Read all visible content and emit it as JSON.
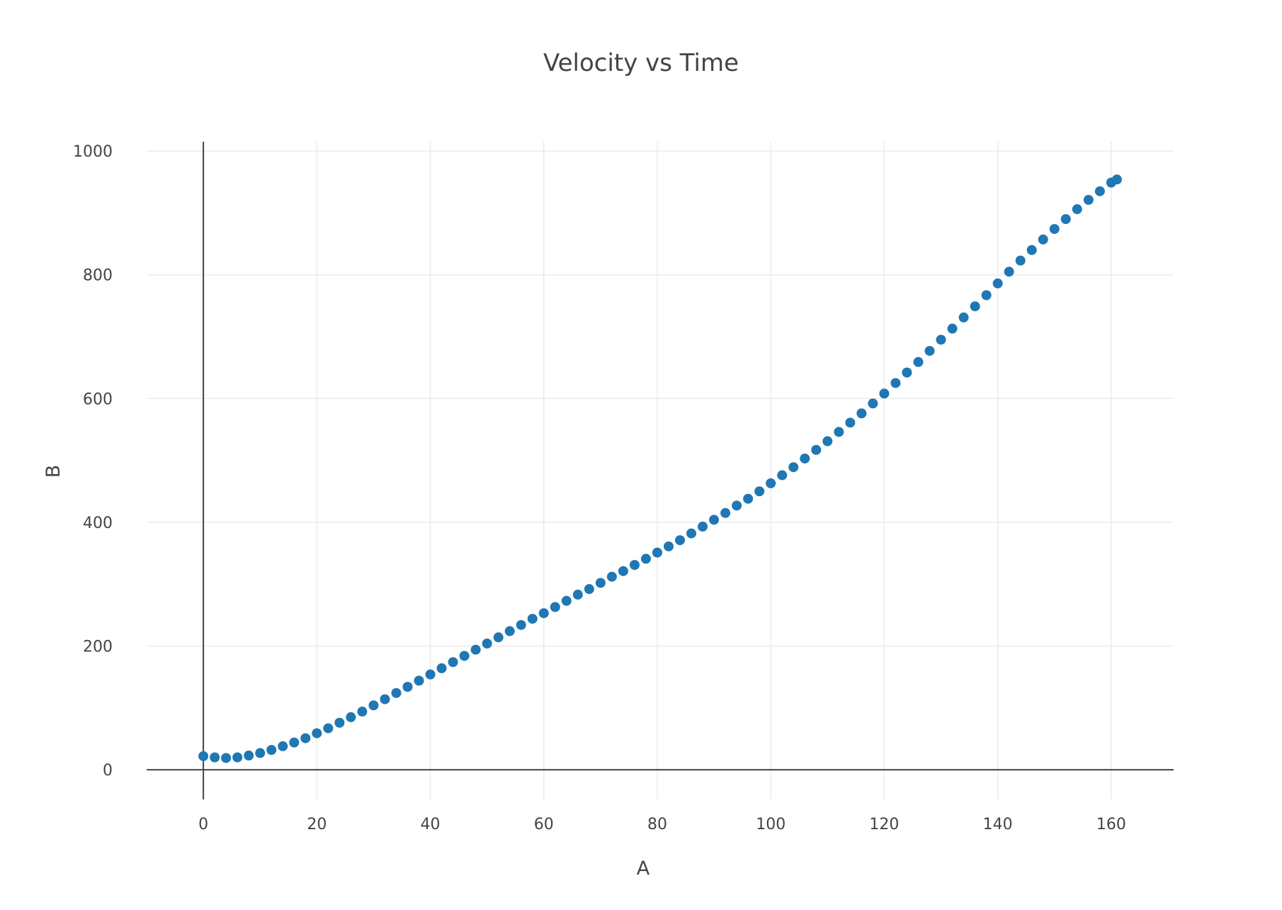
{
  "chart_data": {
    "type": "scatter",
    "title": "Velocity vs Time",
    "xlabel": "A",
    "ylabel": "B",
    "xlim": [
      -10,
      171
    ],
    "ylim": [
      -48,
      1015
    ],
    "xticks": [
      0,
      20,
      40,
      60,
      80,
      100,
      120,
      140,
      160
    ],
    "yticks": [
      0,
      200,
      400,
      600,
      800,
      1000
    ],
    "grid": true,
    "legend": "none",
    "marker_color": "#1f77b4",
    "x": [
      0,
      2,
      4,
      6,
      8,
      10,
      12,
      14,
      16,
      18,
      20,
      22,
      24,
      26,
      28,
      30,
      32,
      34,
      36,
      38,
      40,
      42,
      44,
      46,
      48,
      50,
      52,
      54,
      56,
      58,
      60,
      62,
      64,
      66,
      68,
      70,
      72,
      74,
      76,
      78,
      80,
      82,
      84,
      86,
      88,
      90,
      92,
      94,
      96,
      98,
      100,
      102,
      104,
      106,
      108,
      110,
      112,
      114,
      116,
      118,
      120,
      122,
      124,
      126,
      128,
      130,
      132,
      134,
      136,
      138,
      140,
      142,
      144,
      146,
      148,
      150,
      152,
      154,
      156,
      158,
      160,
      161
    ],
    "y": [
      22,
      20,
      19,
      20,
      23,
      27,
      32,
      38,
      44,
      51,
      59,
      67,
      76,
      85,
      94,
      104,
      114,
      124,
      134,
      144,
      154,
      164,
      174,
      184,
      194,
      204,
      214,
      224,
      234,
      244,
      253,
      263,
      273,
      283,
      292,
      302,
      312,
      321,
      331,
      341,
      351,
      361,
      371,
      382,
      393,
      404,
      415,
      427,
      438,
      450,
      463,
      476,
      489,
      503,
      517,
      531,
      546,
      561,
      576,
      592,
      608,
      625,
      642,
      659,
      677,
      695,
      713,
      731,
      749,
      767,
      786,
      805,
      823,
      840,
      857,
      874,
      890,
      906,
      921,
      935,
      949,
      954
    ]
  }
}
